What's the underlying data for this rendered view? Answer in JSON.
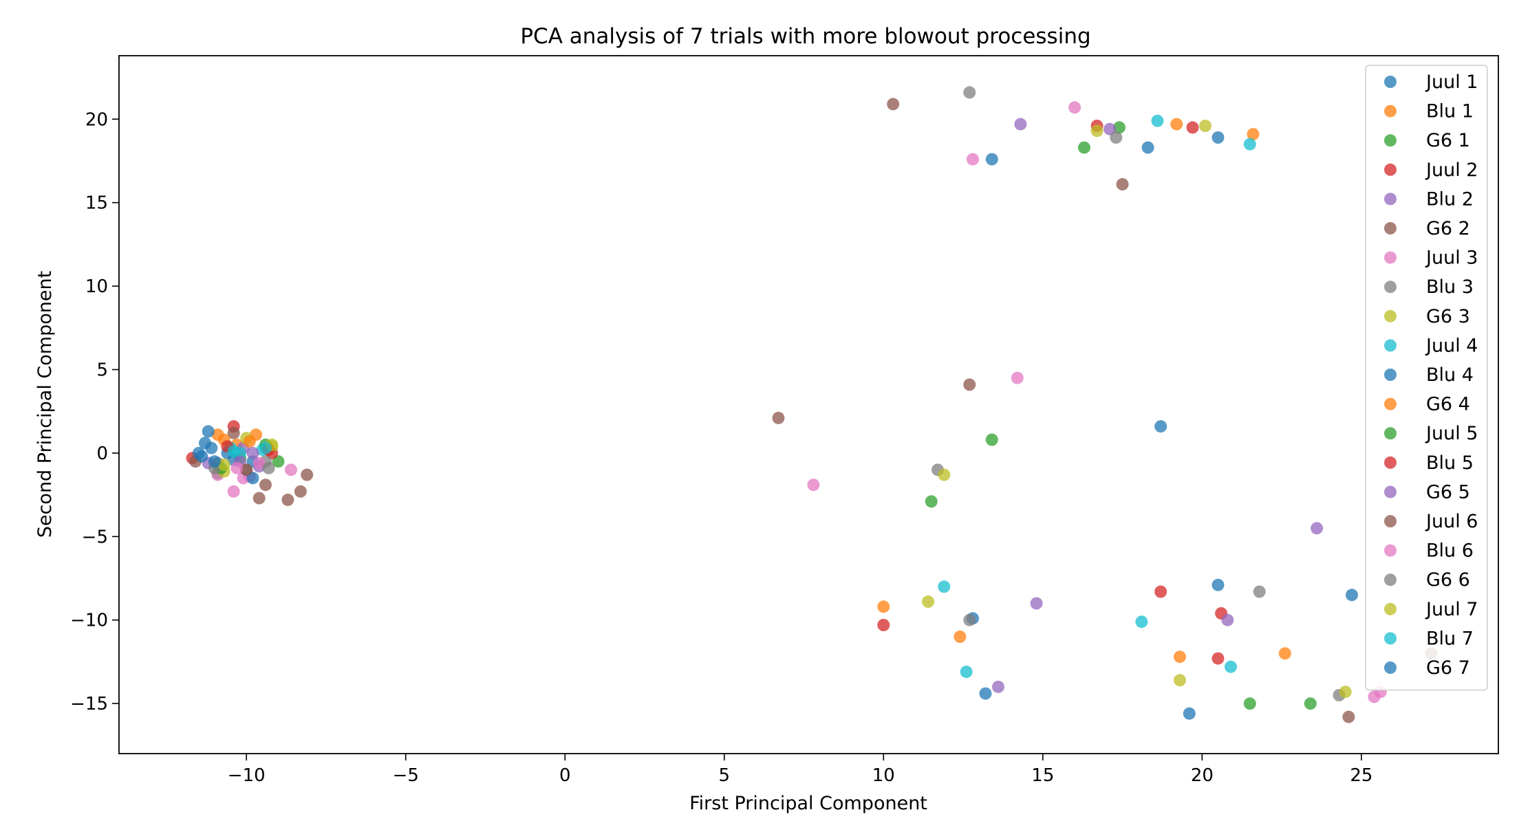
{
  "chart_data": {
    "type": "scatter",
    "title": "PCA analysis of 7 trials with more blowout processing",
    "xlabel": "First Principal Component",
    "ylabel": "Second Principal Component",
    "xlim": [
      -14.0,
      29.3
    ],
    "ylim": [
      -18.0,
      23.8
    ],
    "x_ticks": [
      -10,
      -5,
      0,
      5,
      10,
      15,
      20,
      25
    ],
    "x_tick_labels": [
      "−10",
      "−5",
      "0",
      "5",
      "10",
      "15",
      "20",
      "25"
    ],
    "y_ticks": [
      -15,
      -10,
      -5,
      0,
      5,
      10,
      15,
      20
    ],
    "y_tick_labels": [
      "−15",
      "−10",
      "−5",
      "0",
      "5",
      "10",
      "15",
      "20"
    ],
    "grid": false,
    "legend_position": "top-right",
    "series": [
      {
        "name": "Juul 1",
        "color": "#1f77b4",
        "points": [
          [
            -11.1,
            0.3
          ],
          [
            -10.6,
            0.0
          ],
          [
            -9.8,
            -0.5
          ]
        ]
      },
      {
        "name": "Blu 1",
        "color": "#ff7f0e",
        "points": [
          [
            -10.9,
            1.1
          ],
          [
            -9.7,
            1.1
          ],
          [
            -10.3,
            0.5
          ]
        ]
      },
      {
        "name": "G6 1",
        "color": "#2ca02c",
        "points": [
          [
            -9.0,
            -0.5
          ],
          [
            -10.9,
            -1.2
          ],
          [
            -10.2,
            -0.3
          ]
        ]
      },
      {
        "name": "Juul 2",
        "color": "#d62728",
        "points": [
          [
            -10.4,
            1.6
          ],
          [
            -11.7,
            -0.3
          ],
          [
            -9.2,
            0.0
          ]
        ]
      },
      {
        "name": "Blu 2",
        "color": "#9467bd",
        "points": [
          [
            -11.2,
            -0.6
          ],
          [
            -10.1,
            0.3
          ],
          [
            -9.6,
            -0.8
          ]
        ]
      },
      {
        "name": "G6 2",
        "color": "#8c564b",
        "points": [
          [
            -11.6,
            -0.5
          ],
          [
            -9.6,
            -2.7
          ],
          [
            -10.4,
            1.2
          ]
        ]
      },
      {
        "name": "Juul 3",
        "color": "#e377c2",
        "points": [
          [
            -10.4,
            -2.3
          ],
          [
            -8.6,
            -1.0
          ],
          [
            -10.1,
            -1.5
          ],
          [
            -10.9,
            -1.3
          ],
          [
            -9.9,
            -1.4
          ]
        ]
      },
      {
        "name": "Blu 3",
        "color": "#7f7f7f",
        "points": [
          [
            -10.9,
            -0.6
          ],
          [
            -9.4,
            -0.5
          ],
          [
            -10.0,
            -1.0
          ]
        ]
      },
      {
        "name": "G6 3",
        "color": "#bcbd22",
        "points": [
          [
            -10.0,
            0.9
          ],
          [
            -9.2,
            0.4
          ],
          [
            -10.7,
            -1.1
          ]
        ]
      },
      {
        "name": "Juul 4",
        "color": "#17becf",
        "points": [
          [
            -10.5,
            0.3
          ],
          [
            -9.5,
            0.2
          ],
          [
            -10.2,
            0.0
          ]
        ]
      },
      {
        "name": "Blu 4",
        "color": "#1f77b4",
        "points": [
          [
            -11.3,
            0.6
          ],
          [
            -11.5,
            0.0
          ],
          [
            -11.2,
            1.3
          ],
          [
            -9.8,
            -1.5
          ],
          [
            -10.4,
            -0.4
          ]
        ]
      },
      {
        "name": "G6 4",
        "color": "#ff7f0e",
        "points": [
          [
            -10.7,
            0.8
          ],
          [
            -9.9,
            0.7
          ]
        ]
      },
      {
        "name": "Juul 5",
        "color": "#2ca02c",
        "points": [
          [
            -10.8,
            -0.9
          ],
          [
            -9.4,
            0.5
          ]
        ]
      },
      {
        "name": "Blu 5",
        "color": "#d62728",
        "points": [
          [
            -9.3,
            0.2
          ],
          [
            -10.6,
            0.4
          ]
        ]
      },
      {
        "name": "G6 5",
        "color": "#9467bd",
        "points": [
          [
            -10.2,
            -0.5
          ],
          [
            -9.8,
            0.0
          ]
        ]
      },
      {
        "name": "Juul 6",
        "color": "#8c564b",
        "points": [
          [
            -8.1,
            -1.3
          ],
          [
            -8.3,
            -2.3
          ],
          [
            -8.7,
            -2.8
          ],
          [
            -9.4,
            -1.9
          ],
          [
            -10.0,
            -1.0
          ]
        ]
      },
      {
        "name": "Blu 6",
        "color": "#e377c2",
        "points": [
          [
            -10.3,
            -0.9
          ],
          [
            -9.6,
            -0.6
          ]
        ]
      },
      {
        "name": "G6 6",
        "color": "#7f7f7f",
        "points": [
          [
            -11.0,
            -0.9
          ],
          [
            -9.3,
            -0.9
          ]
        ]
      },
      {
        "name": "Juul 7",
        "color": "#bcbd22",
        "points": [
          [
            -10.7,
            -0.7
          ],
          [
            -9.2,
            0.5
          ]
        ]
      },
      {
        "name": "Blu 7",
        "color": "#17becf",
        "points": [
          [
            -10.4,
            0.1
          ],
          [
            -9.4,
            0.3
          ]
        ]
      },
      {
        "name": "G6 7",
        "color": "#1f77b4",
        "points": [
          [
            -11.4,
            -0.2
          ],
          [
            -11.0,
            -0.5
          ]
        ]
      },
      {
        "name": "Juul 1",
        "color": "#1f77b4",
        "points": [
          [
            18.3,
            18.3
          ],
          [
            20.5,
            18.9
          ],
          [
            18.7,
            1.6
          ],
          [
            20.5,
            -7.9
          ],
          [
            24.7,
            -8.5
          ],
          [
            19.6,
            -15.6
          ],
          [
            12.8,
            -9.9
          ],
          [
            13.2,
            -14.4
          ]
        ]
      },
      {
        "name": "Blu 1",
        "color": "#ff7f0e",
        "points": [
          [
            19.2,
            19.7
          ],
          [
            21.6,
            19.1
          ],
          [
            10.0,
            -9.2
          ],
          [
            12.4,
            -11.0
          ],
          [
            19.3,
            -12.2
          ],
          [
            22.6,
            -12.0
          ]
        ]
      },
      {
        "name": "G6 1",
        "color": "#2ca02c",
        "points": [
          [
            16.3,
            18.3
          ],
          [
            17.4,
            19.5
          ],
          [
            13.4,
            0.8
          ],
          [
            11.5,
            -2.9
          ],
          [
            21.5,
            -15.0
          ],
          [
            23.4,
            -15.0
          ]
        ]
      },
      {
        "name": "Juul 2",
        "color": "#d62728",
        "points": [
          [
            16.7,
            19.6
          ],
          [
            19.7,
            19.5
          ],
          [
            10.0,
            -10.3
          ],
          [
            18.7,
            -8.3
          ],
          [
            20.6,
            -9.6
          ],
          [
            20.5,
            -12.3
          ]
        ]
      },
      {
        "name": "Blu 2",
        "color": "#9467bd",
        "points": [
          [
            14.3,
            19.7
          ],
          [
            17.1,
            19.4
          ],
          [
            14.8,
            -9.0
          ],
          [
            20.8,
            -10.0
          ],
          [
            23.6,
            -4.5
          ],
          [
            13.6,
            -14.0
          ]
        ]
      },
      {
        "name": "G6 2",
        "color": "#8c564b",
        "points": [
          [
            10.3,
            20.9
          ],
          [
            17.5,
            16.1
          ],
          [
            6.7,
            2.1
          ],
          [
            12.7,
            4.1
          ],
          [
            24.6,
            -15.8
          ],
          [
            27.2,
            -12.0
          ]
        ]
      },
      {
        "name": "Juul 3",
        "color": "#e377c2",
        "points": [
          [
            12.8,
            17.6
          ],
          [
            16.0,
            20.7
          ],
          [
            14.2,
            4.5
          ],
          [
            7.8,
            -1.9
          ],
          [
            25.4,
            -14.6
          ],
          [
            25.6,
            -14.3
          ]
        ]
      },
      {
        "name": "Blu 3",
        "color": "#7f7f7f",
        "points": [
          [
            12.7,
            21.6
          ],
          [
            17.3,
            18.9
          ],
          [
            11.7,
            -1.0
          ],
          [
            12.7,
            -10.0
          ],
          [
            21.8,
            -8.3
          ],
          [
            24.3,
            -14.5
          ]
        ]
      },
      {
        "name": "G6 3",
        "color": "#bcbd22",
        "points": [
          [
            16.7,
            19.3
          ],
          [
            20.1,
            19.6
          ],
          [
            11.9,
            -1.3
          ],
          [
            11.4,
            -8.9
          ],
          [
            19.3,
            -13.6
          ],
          [
            24.5,
            -14.3
          ]
        ]
      },
      {
        "name": "Juul 4",
        "color": "#17becf",
        "points": [
          [
            18.6,
            19.9
          ],
          [
            21.5,
            18.5
          ],
          [
            11.9,
            -8.0
          ],
          [
            18.1,
            -10.1
          ],
          [
            20.9,
            -12.8
          ],
          [
            12.6,
            -13.1
          ]
        ]
      },
      {
        "name": "Blu 4",
        "color": "#1f77b4",
        "points": [
          [
            13.4,
            17.6
          ]
        ]
      }
    ]
  },
  "legend": {
    "entries": [
      {
        "label": "Juul 1",
        "color": "#1f77b4"
      },
      {
        "label": "Blu 1",
        "color": "#ff7f0e"
      },
      {
        "label": "G6 1",
        "color": "#2ca02c"
      },
      {
        "label": "Juul 2",
        "color": "#d62728"
      },
      {
        "label": "Blu 2",
        "color": "#9467bd"
      },
      {
        "label": "G6 2",
        "color": "#8c564b"
      },
      {
        "label": "Juul 3",
        "color": "#e377c2"
      },
      {
        "label": "Blu 3",
        "color": "#7f7f7f"
      },
      {
        "label": "G6 3",
        "color": "#bcbd22"
      },
      {
        "label": "Juul 4",
        "color": "#17becf"
      },
      {
        "label": "Blu 4",
        "color": "#1f77b4"
      },
      {
        "label": "G6 4",
        "color": "#ff7f0e"
      },
      {
        "label": "Juul 5",
        "color": "#2ca02c"
      },
      {
        "label": "Blu 5",
        "color": "#d62728"
      },
      {
        "label": "G6 5",
        "color": "#9467bd"
      },
      {
        "label": "Juul 6",
        "color": "#8c564b"
      },
      {
        "label": "Blu 6",
        "color": "#e377c2"
      },
      {
        "label": "G6 6",
        "color": "#7f7f7f"
      },
      {
        "label": "Juul 7",
        "color": "#bcbd22"
      },
      {
        "label": "Blu 7",
        "color": "#17becf"
      },
      {
        "label": "G6 7",
        "color": "#1f77b4"
      }
    ]
  }
}
